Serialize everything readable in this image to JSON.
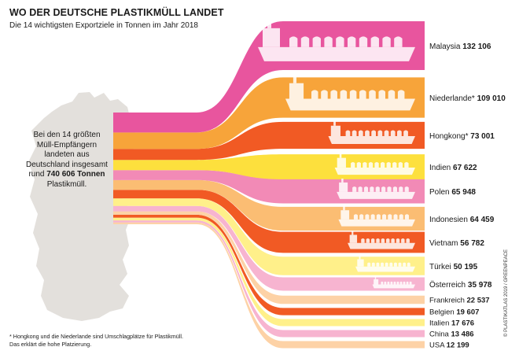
{
  "title": "WO DER DEUTSCHE PLASTIKMÜLL LANDET",
  "subtitle": "Die 14 wichtigsten Exportziele in Tonnen im Jahr 2018",
  "summary": {
    "line1": "Bei den 14 größten",
    "line2": "Müll-Empfängern",
    "line3": "landeten aus",
    "line4": "Deutschland insgesamt",
    "prefix": "rund",
    "total": "740 606 Tonnen",
    "line6": "Plastikmüll."
  },
  "footnote": {
    "line1": "* Hongkong und die Niederlande sind Umschlagplätze für Plastikmüll.",
    "line2": "Das erklärt die hohe Platzierung."
  },
  "credit": "© PLASTIKATLAS 2019 / GREENPEACE",
  "colors": {
    "map": "#e3e0dc",
    "magenta": "#e8559e",
    "orange": "#f7a43a",
    "red_orange": "#f15a24",
    "yellow": "#fde03d",
    "pink": "#f28ab6",
    "light_orange": "#fbbd73",
    "light_yellow": "#fff08a",
    "light_pink": "#f7b4d0",
    "pale_orange": "#fdd2a6"
  },
  "chart_data": {
    "type": "sankey",
    "title": "WO DER DEUTSCHE PLASTIKMÜLL LANDET",
    "subtitle": "Die 14 wichtigsten Exportziele in Tonnen im Jahr 2018",
    "unit": "Tonnen",
    "source": "Deutschland",
    "total": 740606,
    "flows": [
      {
        "country": "Malaysia",
        "name": "Malaysia",
        "asterisk": false,
        "value": 132106,
        "label": "132 106",
        "color": "magenta",
        "ship": true
      },
      {
        "country": "Niederlande",
        "name": "Niederlande*",
        "asterisk": true,
        "value": 109010,
        "label": "109 010",
        "color": "orange",
        "ship": true
      },
      {
        "country": "Hongkong",
        "name": "Hongkong*",
        "asterisk": true,
        "value": 73001,
        "label": "73 001",
        "color": "red_orange",
        "ship": true
      },
      {
        "country": "Indien",
        "name": "Indien",
        "asterisk": false,
        "value": 67622,
        "label": "67 622",
        "color": "yellow",
        "ship": true
      },
      {
        "country": "Polen",
        "name": "Polen",
        "asterisk": false,
        "value": 65948,
        "label": "65 948",
        "color": "pink",
        "ship": true
      },
      {
        "country": "Indonesien",
        "name": "Indonesien",
        "asterisk": false,
        "value": 64459,
        "label": "64 459",
        "color": "light_orange",
        "ship": true
      },
      {
        "country": "Vietnam",
        "name": "Vietnam",
        "asterisk": false,
        "value": 56782,
        "label": "56 782",
        "color": "red_orange",
        "ship": true
      },
      {
        "country": "Türkei",
        "name": "Türkei",
        "asterisk": false,
        "value": 50195,
        "label": "50 195",
        "color": "light_yellow",
        "ship": true
      },
      {
        "country": "Österreich",
        "name": "Österreich",
        "asterisk": false,
        "value": 35978,
        "label": "35 978",
        "color": "light_pink",
        "ship": true
      },
      {
        "country": "Frankreich",
        "name": "Frankreich",
        "asterisk": false,
        "value": 22537,
        "label": "22 537",
        "color": "pale_orange",
        "ship": false
      },
      {
        "country": "Belgien",
        "name": "Belgien",
        "asterisk": false,
        "value": 19607,
        "label": "19 607",
        "color": "red_orange",
        "ship": false
      },
      {
        "country": "Italien",
        "name": "Italien",
        "asterisk": false,
        "value": 17676,
        "label": "17 676",
        "color": "light_yellow",
        "ship": false
      },
      {
        "country": "China",
        "name": "China",
        "asterisk": false,
        "value": 13486,
        "label": "13 486",
        "color": "light_pink",
        "ship": false
      },
      {
        "country": "USA",
        "name": "USA",
        "asterisk": false,
        "value": 12199,
        "label": "12 199",
        "color": "pale_orange",
        "ship": false
      }
    ]
  }
}
